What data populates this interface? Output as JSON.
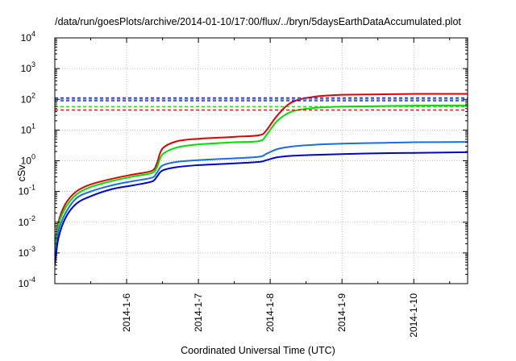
{
  "chart_data": {
    "type": "line",
    "title": "/data/run/goesPlots/archive/2014-01-10/17:00/flux/../bryn/5daysEarthDataAccumulated.plot",
    "xlabel": "Coordinated Universal Time (UTC)",
    "ylabel": "cSv",
    "yscale": "log",
    "ylim": [
      0.0001,
      10000
    ],
    "xlim": [
      5.0,
      10.75
    ],
    "x_tick_values": [
      6,
      7,
      8,
      9,
      10
    ],
    "x_tick_labels": [
      "2014-1-6",
      "2014-1-7",
      "2014-1-8",
      "2014-1-9",
      "2014-1-10"
    ],
    "y_tick_labels": [
      {
        "base": "10",
        "exp": "-4"
      },
      {
        "base": "10",
        "exp": "-3"
      },
      {
        "base": "10",
        "exp": "-2"
      },
      {
        "base": "10",
        "exp": "-1"
      },
      {
        "base": "10",
        "exp": "0"
      },
      {
        "base": "10",
        "exp": "1"
      },
      {
        "base": "10",
        "exp": "2"
      },
      {
        "base": "10",
        "exp": "3"
      },
      {
        "base": "10",
        "exp": "4"
      }
    ],
    "grid": true,
    "series": [
      {
        "color": "#e00000",
        "style": "solid",
        "x": [
          5.0,
          5.05,
          5.15,
          5.3,
          5.5,
          5.8,
          6.1,
          6.35,
          6.42,
          6.5,
          6.7,
          7.0,
          7.5,
          7.85,
          7.95,
          8.1,
          8.3,
          8.6,
          9.0,
          9.5,
          10.0,
          10.75
        ],
        "y": [
          0.0015,
          0.01,
          0.04,
          0.1,
          0.17,
          0.26,
          0.36,
          0.47,
          0.8,
          2.5,
          4.3,
          5.2,
          6.0,
          6.8,
          10,
          30,
          80,
          120,
          140,
          145,
          150,
          150
        ]
      },
      {
        "color": "#00e000",
        "style": "solid",
        "x": [
          5.0,
          5.05,
          5.15,
          5.3,
          5.5,
          5.8,
          6.1,
          6.35,
          6.42,
          6.5,
          6.7,
          7.0,
          7.5,
          7.85,
          7.95,
          8.1,
          8.3,
          8.6,
          9.0,
          9.5,
          10.0,
          10.75
        ],
        "y": [
          0.001,
          0.008,
          0.03,
          0.08,
          0.14,
          0.22,
          0.31,
          0.4,
          0.6,
          1.6,
          2.7,
          3.4,
          4.0,
          4.4,
          7,
          20,
          40,
          52,
          58,
          60,
          62,
          63
        ]
      },
      {
        "color": "#1a6fe0",
        "style": "solid",
        "x": [
          5.0,
          5.05,
          5.15,
          5.3,
          5.5,
          5.8,
          6.1,
          6.35,
          6.42,
          6.5,
          6.7,
          7.0,
          7.5,
          7.85,
          7.95,
          8.1,
          8.3,
          8.6,
          9.0,
          9.5,
          10.0,
          10.75
        ],
        "y": [
          0.0006,
          0.005,
          0.02,
          0.06,
          0.1,
          0.16,
          0.22,
          0.28,
          0.4,
          0.7,
          0.92,
          1.05,
          1.2,
          1.35,
          1.7,
          2.4,
          2.9,
          3.3,
          3.6,
          3.8,
          4.0,
          4.1
        ]
      },
      {
        "color": "#0000d8",
        "style": "solid",
        "x": [
          5.0,
          5.05,
          5.15,
          5.3,
          5.5,
          5.8,
          6.1,
          6.35,
          6.42,
          6.5,
          6.7,
          7.0,
          7.5,
          7.85,
          7.95,
          8.1,
          8.3,
          8.6,
          9.0,
          9.5,
          10.0,
          10.75
        ],
        "y": [
          0.0004,
          0.003,
          0.014,
          0.04,
          0.07,
          0.12,
          0.16,
          0.21,
          0.3,
          0.48,
          0.62,
          0.72,
          0.82,
          0.92,
          1.05,
          1.3,
          1.45,
          1.55,
          1.65,
          1.75,
          1.8,
          1.9
        ]
      },
      {
        "color": "#e00000",
        "style": "dashed",
        "x": [
          5.0,
          10.75
        ],
        "y": [
          45,
          45
        ]
      },
      {
        "color": "#00e000",
        "style": "dashed",
        "x": [
          5.0,
          10.75
        ],
        "y": [
          58,
          58
        ]
      },
      {
        "color": "#0000d8",
        "style": "dashed",
        "x": [
          5.0,
          10.75
        ],
        "y": [
          90,
          90
        ]
      },
      {
        "color": "#1a6fe0",
        "style": "dashed",
        "x": [
          5.0,
          10.75
        ],
        "y": [
          102,
          102
        ]
      },
      {
        "color": "#8a00d8",
        "style": "dashed",
        "x": [
          5.0,
          10.75
        ],
        "y": [
          112,
          112
        ]
      }
    ]
  }
}
